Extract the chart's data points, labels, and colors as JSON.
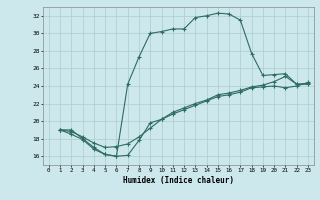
{
  "xlabel": "Humidex (Indice chaleur)",
  "bg_color": "#cce8ec",
  "grid_color": "#aacccc",
  "line_color": "#2e6b60",
  "xlim": [
    -0.5,
    23.5
  ],
  "ylim": [
    15,
    33
  ],
  "xticks": [
    0,
    1,
    2,
    3,
    4,
    5,
    6,
    7,
    8,
    9,
    10,
    11,
    12,
    13,
    14,
    15,
    16,
    17,
    18,
    19,
    20,
    21,
    22,
    23
  ],
  "yticks": [
    16,
    18,
    20,
    22,
    24,
    26,
    28,
    30,
    32
  ],
  "line1_x": [
    1,
    2,
    3,
    4,
    5,
    6,
    7,
    8,
    9,
    10,
    11,
    12,
    13,
    14,
    15,
    16,
    17,
    18,
    19,
    20,
    21,
    22,
    23
  ],
  "line1_y": [
    19,
    19,
    18,
    17,
    16.2,
    16,
    24.2,
    27.3,
    30,
    30.2,
    30.5,
    30.5,
    31.8,
    32,
    32.3,
    32.2,
    31.5,
    27.7,
    25.2,
    25.3,
    25.4,
    24.2,
    24.2
  ],
  "line2_x": [
    1,
    2,
    3,
    4,
    5,
    6,
    7,
    8,
    9,
    10,
    11,
    12,
    13,
    14,
    15,
    16,
    17,
    18,
    19,
    20,
    21,
    22,
    23
  ],
  "line2_y": [
    19,
    18.8,
    18.2,
    17.5,
    17.0,
    17.1,
    17.4,
    18.2,
    19.2,
    20.2,
    21.0,
    21.5,
    22.0,
    22.4,
    23.0,
    23.2,
    23.5,
    23.9,
    24.1,
    24.5,
    25.1,
    24.2,
    24.3
  ],
  "line3_x": [
    1,
    2,
    3,
    4,
    5,
    6,
    7,
    8,
    9,
    10,
    11,
    12,
    13,
    14,
    15,
    16,
    17,
    18,
    19,
    20,
    21,
    22,
    23
  ],
  "line3_y": [
    19,
    18.5,
    17.9,
    16.8,
    16.2,
    16.0,
    16.1,
    17.8,
    19.8,
    20.2,
    20.8,
    21.3,
    21.8,
    22.3,
    22.8,
    23.0,
    23.3,
    23.8,
    23.9,
    24.0,
    23.8,
    24.0,
    24.4
  ]
}
